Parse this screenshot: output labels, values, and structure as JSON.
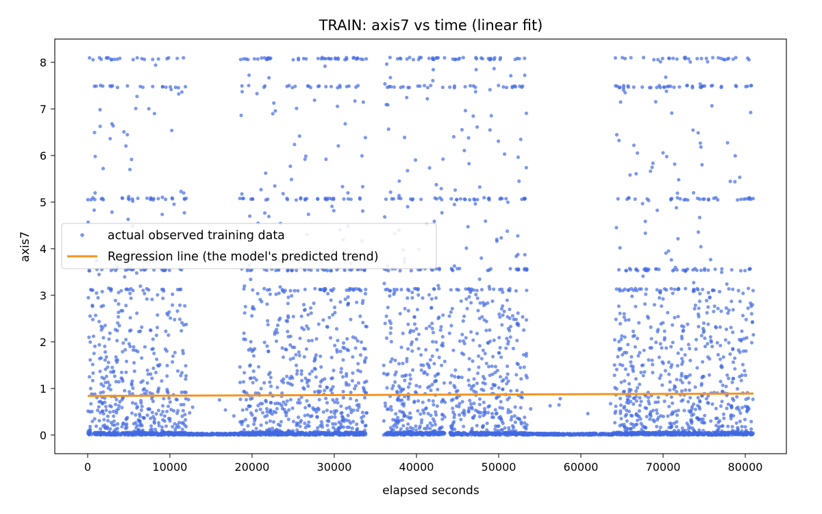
{
  "chart_data": {
    "type": "scatter",
    "title": "TRAIN: axis7 vs time (linear fit)",
    "xlabel": "elapsed seconds",
    "ylabel": "axis7",
    "xlim": [
      -4000,
      85000
    ],
    "ylim": [
      -0.4,
      8.5
    ],
    "x_ticks": [
      0,
      10000,
      20000,
      30000,
      40000,
      50000,
      60000,
      70000,
      80000
    ],
    "y_ticks": [
      0,
      1,
      2,
      3,
      4,
      5,
      6,
      7,
      8
    ],
    "grid": false,
    "legend_position": "center-left",
    "series": [
      {
        "name": "actual observed training data",
        "kind": "scatter",
        "color": "#4169E1",
        "data_ranges": [
          [
            0,
            12000
          ],
          [
            18500,
            34000
          ],
          [
            36000,
            43500
          ],
          [
            44000,
            53500
          ],
          [
            64000,
            81000
          ]
        ],
        "zero_ranges": [
          [
            12000,
            18500
          ],
          [
            53500,
            64000
          ]
        ],
        "levels": [
          0,
          3.12,
          3.55,
          5.07,
          7.48,
          8.08
        ]
      },
      {
        "name": "Regression line (the model's predicted trend)",
        "kind": "line",
        "color": "#F5931E",
        "x": [
          0,
          81000
        ],
        "y": [
          0.84,
          0.89
        ]
      }
    ]
  }
}
